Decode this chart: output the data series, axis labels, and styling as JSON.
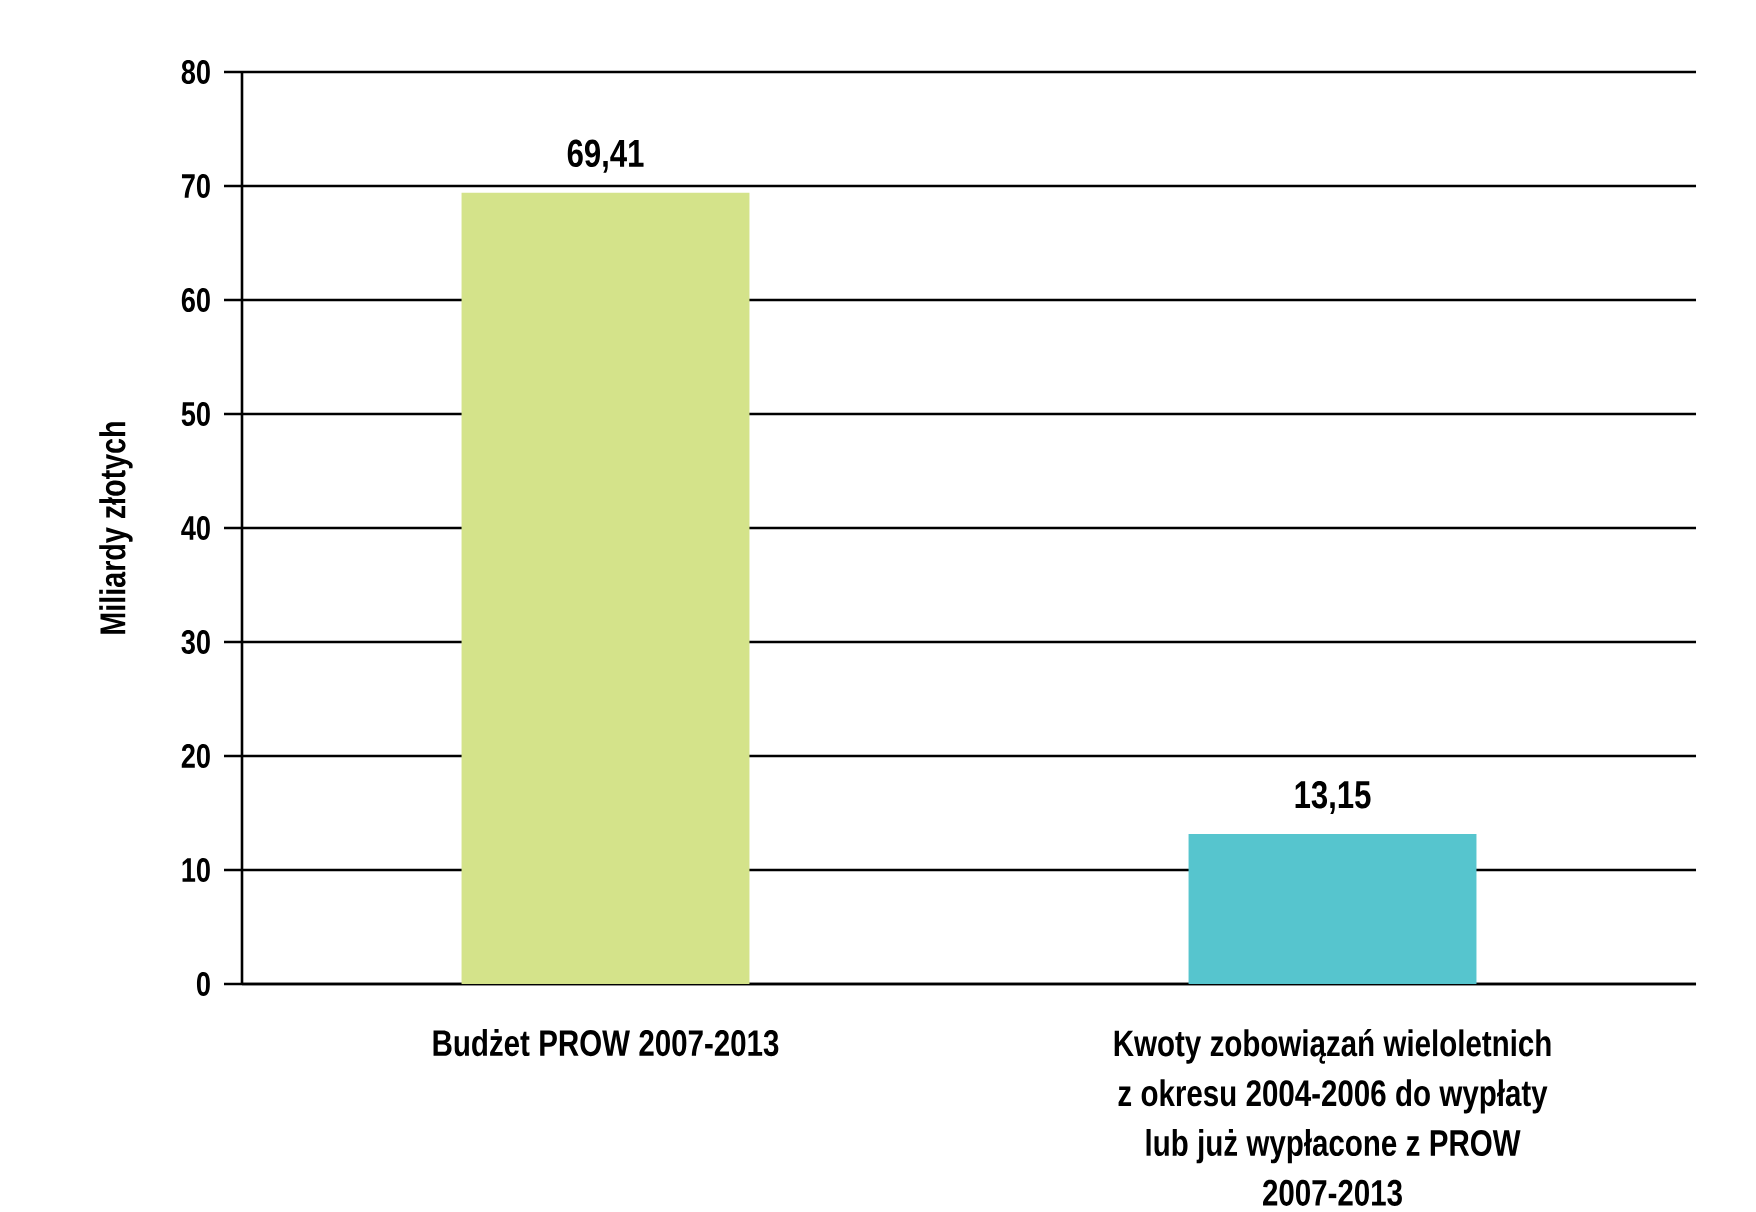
{
  "chart_data": {
    "type": "bar",
    "ylabel": "Miliardy złotych",
    "categories": [
      "Budżet PROW 2007-2013",
      "Kwoty zobowiązań wieloletnich z okresu 2004-2006 do wypłaty lub już wypłacone z PROW 2007-2013"
    ],
    "values": [
      69.41,
      13.15
    ],
    "colors": [
      "#d4e38a",
      "#56c5ce"
    ],
    "value_labels": [
      "69,41",
      "13,15"
    ],
    "ylim": [
      0,
      80
    ],
    "yticks": [
      0,
      10,
      20,
      30,
      40,
      50,
      60,
      70,
      80
    ],
    "grid": "y"
  }
}
